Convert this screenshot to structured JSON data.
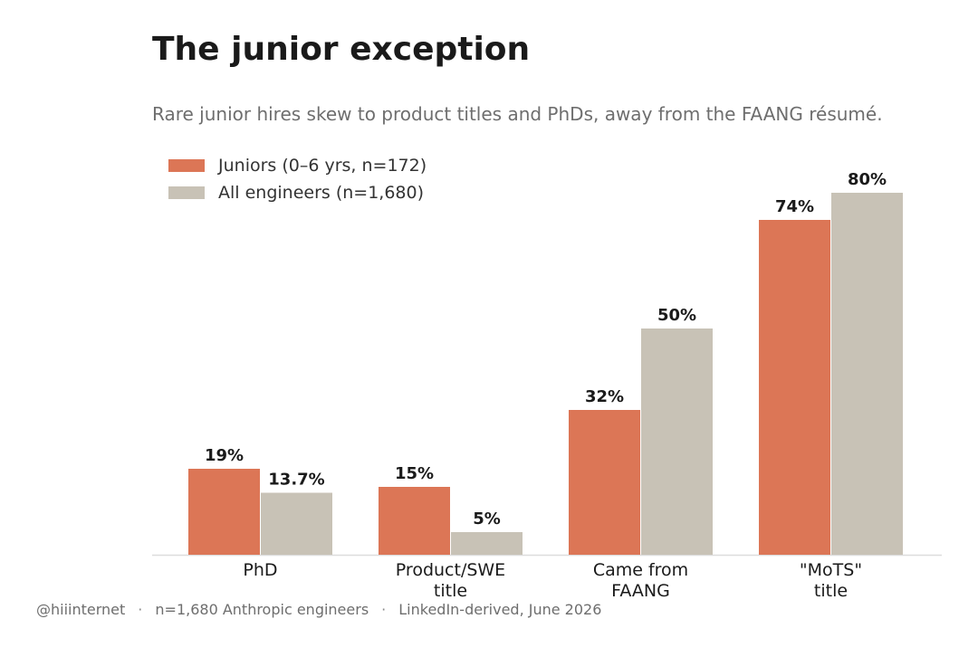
{
  "title": "The junior exception",
  "subtitle": "Rare junior hires skew to product titles and PhDs, away from the FAANG résumé.",
  "colors": {
    "juniors": "#dc7656",
    "all_engineers": "#c8c2b6",
    "axis": "#dddddd",
    "text": "#1a1a1a"
  },
  "chart_data": {
    "type": "bar",
    "categories": [
      [
        "PhD"
      ],
      [
        "Product/SWE",
        "title"
      ],
      [
        "Came from",
        "FAANG"
      ],
      [
        "\"MoTS\"",
        "title"
      ]
    ],
    "series": [
      {
        "name": "Juniors (0–6 yrs, n=172)",
        "values": [
          19,
          15,
          32,
          74
        ],
        "labels": [
          "19%",
          "15%",
          "32%",
          "74%"
        ]
      },
      {
        "name": "All engineers (n=1,680)",
        "values": [
          13.7,
          5,
          50,
          80
        ],
        "labels": [
          "13.7%",
          "5%",
          "50%",
          "80%"
        ]
      }
    ],
    "ylim": [
      0,
      80
    ],
    "grid": false,
    "legend_position": "top-left"
  },
  "footer": {
    "handle": "@hiiinternet",
    "sample": "n=1,680 Anthropic engineers",
    "source": "LinkedIn-derived, June 2026",
    "separator": "·"
  }
}
